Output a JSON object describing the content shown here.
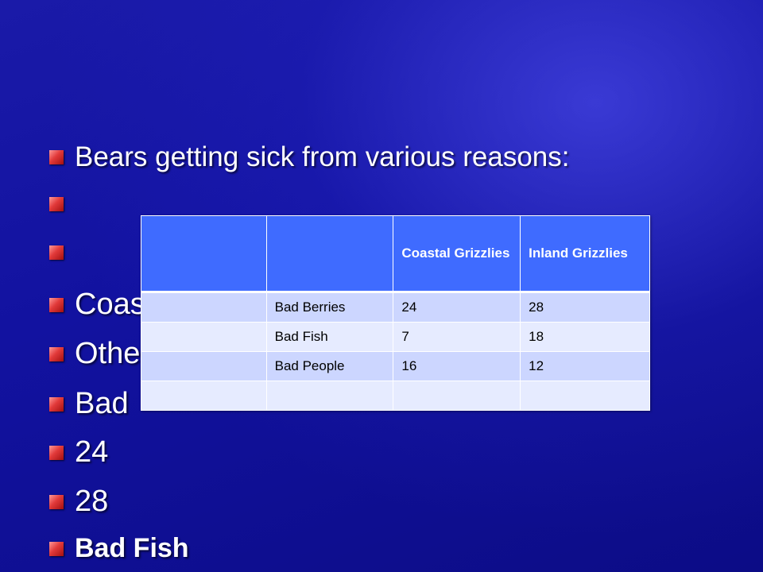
{
  "bullets": [
    "Bears getting sick from various reasons:",
    "",
    "",
    "Coastal",
    "Other",
    "Bad",
    "24",
    "28",
    "Bad Fish"
  ],
  "table": {
    "header": [
      "",
      "",
      "Coastal Grizzlies",
      "Inland Grizzlies"
    ],
    "rows": [
      [
        "",
        "Bad Berries",
        "24",
        "28"
      ],
      [
        "",
        "Bad Fish",
        "7",
        "18"
      ],
      [
        "",
        "Bad People",
        "16",
        "12"
      ],
      [
        "",
        "",
        "",
        ""
      ]
    ]
  },
  "colors": {
    "background": "#1414a0",
    "bullet_marker": "#d92a2a",
    "table_header": "#3f6bff",
    "table_row_dark": "#ccd6ff",
    "table_row_light": "#e6ebff"
  }
}
